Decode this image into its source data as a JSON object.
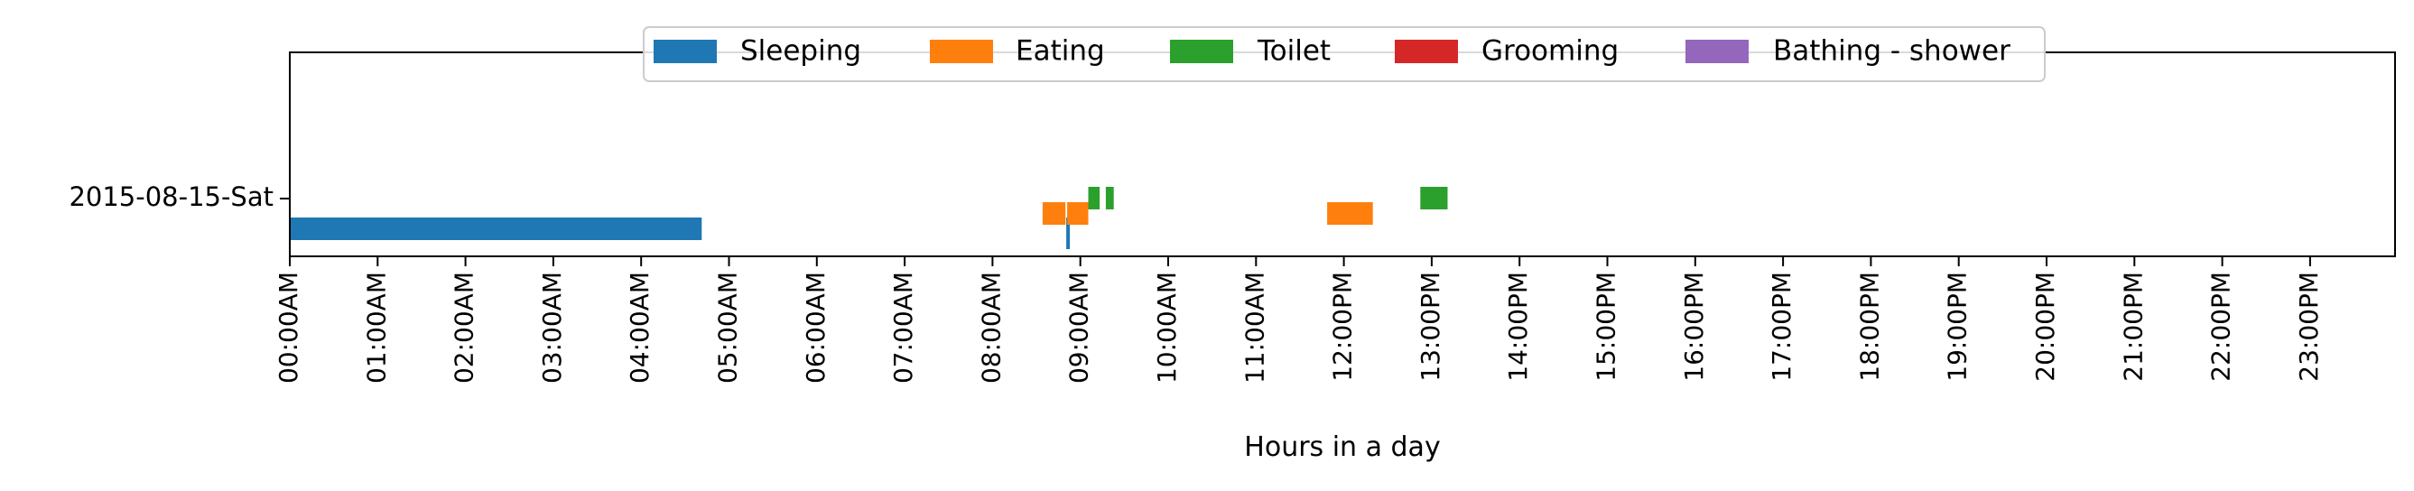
{
  "chart_data": {
    "type": "timeline",
    "xlabel": "Hours in a day",
    "ylabel": "",
    "xlim": [
      0,
      24
    ],
    "x_ticks": [
      "00:00AM",
      "01:00AM",
      "02:00AM",
      "03:00AM",
      "04:00AM",
      "05:00AM",
      "06:00AM",
      "07:00AM",
      "08:00AM",
      "09:00AM",
      "10:00AM",
      "11:00AM",
      "12:00PM",
      "13:00PM",
      "14:00PM",
      "15:00PM",
      "16:00PM",
      "17:00PM",
      "18:00PM",
      "19:00PM",
      "20:00PM",
      "21:00PM",
      "22:00PM",
      "23:00PM"
    ],
    "rows": [
      "2015-08-15-Sat"
    ],
    "legend_position": "top-center",
    "series": [
      {
        "name": "Sleeping",
        "color": "#1f77b4",
        "lane": 0,
        "segments": [
          [
            0.0,
            4.69
          ],
          [
            8.84,
            8.87
          ]
        ]
      },
      {
        "name": "Eating",
        "color": "#ff7f0e",
        "lane": 1,
        "segments": [
          [
            8.57,
            8.83
          ],
          [
            8.85,
            9.09
          ],
          [
            11.81,
            12.33
          ]
        ]
      },
      {
        "name": "Toilet",
        "color": "#2ca02c",
        "lane": 2,
        "segments": [
          [
            9.09,
            9.22
          ],
          [
            9.29,
            9.38
          ],
          [
            12.87,
            13.18
          ]
        ]
      },
      {
        "name": "Grooming",
        "color": "#d62728",
        "lane": 3,
        "segments": []
      },
      {
        "name": "Bathing - shower",
        "color": "#9467bd",
        "lane": 4,
        "segments": []
      }
    ]
  }
}
